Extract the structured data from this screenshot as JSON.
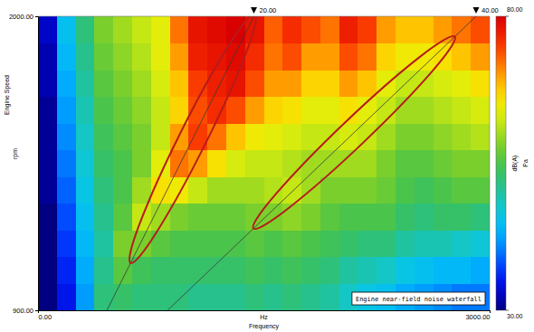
{
  "chart_data": {
    "type": "heatmap",
    "title": "Engine near-field noise waterfall",
    "xlabel": "Frequency",
    "xunit": "Hz",
    "ylabel": "Engine Speed",
    "yunit": "rpm",
    "xlim": [
      0,
      3000
    ],
    "xticks": [
      {
        "value": 0,
        "label": "0.00"
      },
      {
        "value": 3000,
        "label": "3000.00"
      }
    ],
    "ylim": [
      900,
      2000
    ],
    "yticks": [
      {
        "value": 900,
        "label": "900.00"
      },
      {
        "value": 2000,
        "label": "2000.00"
      }
    ],
    "heatmap": {
      "xbins": [
        0,
        125,
        250,
        375,
        500,
        625,
        750,
        875,
        1000,
        1125,
        1250,
        1375,
        1500,
        1625,
        1750,
        1875,
        2000,
        2125,
        2250,
        2375,
        2500,
        2625,
        2750,
        2875,
        3000
      ],
      "ybins": [
        900,
        1000,
        1100,
        1200,
        1300,
        1400,
        1500,
        1600,
        1700,
        1800,
        1900,
        2000
      ],
      "z": [
        [
          30,
          35,
          42,
          52,
          53,
          52,
          52,
          52,
          51,
          51,
          51,
          52,
          51,
          52,
          51,
          50,
          48,
          46,
          45,
          43,
          42,
          41,
          40,
          40
        ],
        [
          30,
          36,
          43,
          51,
          56,
          54,
          53,
          53,
          53,
          53,
          53,
          54,
          53,
          54,
          53,
          52,
          50,
          49,
          48,
          46,
          45,
          44,
          44,
          43
        ],
        [
          30,
          37,
          44,
          50,
          58,
          58,
          56,
          55,
          55,
          55,
          55,
          56,
          55,
          56,
          55,
          54,
          53,
          52,
          52,
          50,
          49,
          49,
          48,
          47
        ],
        [
          30,
          38,
          45,
          51,
          56,
          62,
          60,
          58,
          57,
          57,
          57,
          58,
          58,
          59,
          58,
          56,
          55,
          55,
          55,
          53,
          52,
          53,
          53,
          52
        ],
        [
          31,
          39,
          46,
          52,
          55,
          60,
          66,
          65,
          62,
          60,
          60,
          60,
          61,
          62,
          60,
          58,
          58,
          58,
          57,
          55,
          54,
          55,
          56,
          56
        ],
        [
          31,
          40,
          47,
          53,
          55,
          58,
          64,
          72,
          70,
          66,
          63,
          62,
          62,
          61,
          60,
          60,
          60,
          60,
          58,
          56,
          56,
          57,
          58,
          58
        ],
        [
          31,
          41,
          48,
          54,
          56,
          58,
          62,
          70,
          75,
          72,
          68,
          65,
          64,
          63,
          62,
          62,
          63,
          62,
          60,
          58,
          58,
          59,
          60,
          61
        ],
        [
          31,
          42,
          49,
          55,
          57,
          59,
          62,
          67,
          74,
          76,
          74,
          70,
          67,
          66,
          64,
          64,
          66,
          64,
          62,
          60,
          60,
          61,
          62,
          63
        ],
        [
          32,
          43,
          50,
          56,
          58,
          60,
          63,
          68,
          75,
          77,
          78,
          74,
          70,
          70,
          67,
          67,
          70,
          68,
          64,
          62,
          62,
          63,
          64,
          66
        ],
        [
          32,
          44,
          51,
          57,
          59,
          61,
          64,
          70,
          77,
          78,
          79,
          76,
          72,
          74,
          70,
          70,
          74,
          72,
          67,
          65,
          65,
          66,
          68,
          70
        ],
        [
          33,
          45,
          52,
          58,
          60,
          62,
          64,
          72,
          78,
          79,
          80,
          78,
          73,
          76,
          74,
          72,
          77,
          75,
          70,
          68,
          68,
          70,
          72,
          74
        ]
      ]
    },
    "colorbar": {
      "range": [
        30,
        80
      ],
      "ticks": [
        {
          "value": 30,
          "label": "30.00"
        },
        {
          "value": 80,
          "label": "80.00"
        }
      ],
      "label": "dB(A)",
      "unit": "Pa"
    },
    "order_lines": [
      {
        "label": "20.00",
        "x": [
          458,
          1434
        ],
        "y": [
          900,
          2000
        ]
      },
      {
        "label": "40.00",
        "x": [
          861,
          2910
        ],
        "y": [
          900,
          2000
        ]
      }
    ],
    "highlights": [
      {
        "line": 0,
        "y": [
          1095,
          1990
        ]
      },
      {
        "line": 1,
        "y": [
          1220,
          1910
        ]
      }
    ]
  }
}
